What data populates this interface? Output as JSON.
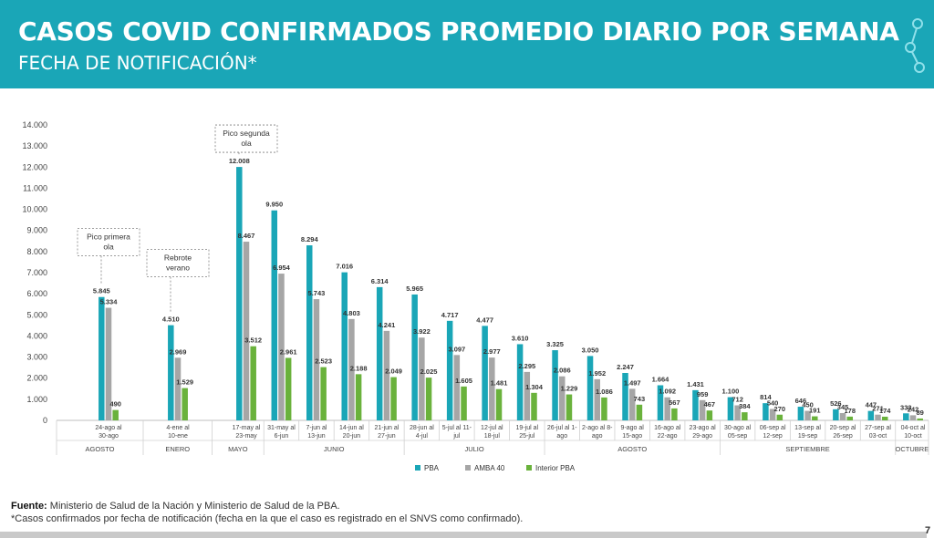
{
  "header": {
    "title": "CASOS COVID CONFIRMADOS PROMEDIO DIARIO POR SEMANA",
    "subtitle": "FECHA DE NOTIFICACIÓN*"
  },
  "footer": {
    "source_label": "Fuente:",
    "source_text": " Ministerio de Salud de la Nación y Ministerio de Salud de la PBA.",
    "note": "*Casos confirmados por fecha de notificación (fecha en la que el caso es registrado en el SNVS como confirmado)."
  },
  "page_number": "7",
  "colors": {
    "banner": "#1aa6b7",
    "PBA": "#1aa6b7",
    "AMBA 40": "#a6a6a6",
    "Interior PBA": "#6ab23c"
  },
  "chart_data": {
    "type": "bar",
    "ylim": [
      0,
      14000
    ],
    "yticks": [
      0,
      1000,
      2000,
      3000,
      4000,
      5000,
      6000,
      7000,
      8000,
      9000,
      10000,
      11000,
      12000,
      13000,
      14000
    ],
    "ytick_labels": [
      "0",
      "1.000",
      "2.000",
      "3.000",
      "4.000",
      "5.000",
      "6.000",
      "7.000",
      "8.000",
      "9.000",
      "10.000",
      "11.000",
      "12.000",
      "13.000",
      "14.000"
    ],
    "grid": false,
    "legend_position": "bottom",
    "categories": [
      "24-ago al 30-ago",
      "4-ene al 10-ene",
      "17-may al 23-may",
      "31-may al 6-jun",
      "7-jun al 13-jun",
      "14-jun al 20-jun",
      "21-jun al 27-jun",
      "28-jun al 4-jul",
      "5-jul al 11-jul",
      "12-jul al 18-jul",
      "19-jul al 25-jul",
      "26-jul al 1-ago",
      "2-ago al 8-ago",
      "9-ago al 15-ago",
      "16-ago al 22-ago",
      "23-ago al 29-ago",
      "30-ago al 05-sep",
      "06-sep al 12-sep",
      "13-sep al 19-sep",
      "20-sep al 26-sep",
      "27-sep al 03-oct",
      "04-oct al 10-oct"
    ],
    "category_lines": [
      [
        "24-ago al",
        "30-ago"
      ],
      [
        "4-ene al",
        "10-ene"
      ],
      [
        "17-may al",
        "23-may"
      ],
      [
        "31-may al",
        "6-jun"
      ],
      [
        "7-jun al",
        "13-jun"
      ],
      [
        "14-jun al",
        "20-jun"
      ],
      [
        "21-jun al",
        "27-jun"
      ],
      [
        "28-jun al",
        "4-jul"
      ],
      [
        "5-jul al 11-",
        "jul"
      ],
      [
        "12-jul al",
        "18-jul"
      ],
      [
        "19-jul al",
        "25-jul"
      ],
      [
        "26-jul al 1-",
        "ago"
      ],
      [
        "2-ago al 8-",
        "ago"
      ],
      [
        "9-ago al",
        "15-ago"
      ],
      [
        "16-ago al",
        "22-ago"
      ],
      [
        "23-ago al",
        "29-ago"
      ],
      [
        "30-ago al",
        "05-sep"
      ],
      [
        "06-sep al",
        "12-sep"
      ],
      [
        "13-sep al",
        "19-sep"
      ],
      [
        "20-sep al",
        "26-sep"
      ],
      [
        "27-sep al",
        "03-oct"
      ],
      [
        "04-oct al",
        "10-oct"
      ]
    ],
    "series": [
      {
        "name": "PBA",
        "values": [
          5845,
          4510,
          12008,
          9950,
          8294,
          7016,
          6314,
          5965,
          4717,
          4477,
          3610,
          3325,
          3050,
          2247,
          1664,
          1431,
          1100,
          814,
          646,
          526,
          447,
          333
        ],
        "labels": [
          "5.845",
          "4.510",
          "12.008",
          "9.950",
          "8.294",
          "7.016",
          "6.314",
          "5.965",
          "4.717",
          "4.477",
          "3.610",
          "3.325",
          "3.050",
          "2.247",
          "1.664",
          "1.431",
          "1.100",
          "814",
          "646",
          "526",
          "447",
          "333"
        ]
      },
      {
        "name": "AMBA 40",
        "values": [
          5334,
          2969,
          8467,
          6954,
          5743,
          4803,
          4241,
          3922,
          3097,
          2977,
          2295,
          2086,
          1952,
          1497,
          1092,
          959,
          712,
          540,
          450,
          345,
          271,
          242
        ],
        "labels": [
          "5.334",
          "2.969",
          "8.467",
          "6.954",
          "5.743",
          "4.803",
          "4.241",
          "3.922",
          "3.097",
          "2.977",
          "2.295",
          "2.086",
          "1.952",
          "1.497",
          "1.092",
          "959",
          "712",
          "540",
          "450",
          "345",
          "271",
          "242"
        ]
      },
      {
        "name": "Interior PBA",
        "values": [
          490,
          1529,
          3512,
          2961,
          2523,
          2188,
          2049,
          2025,
          1605,
          1481,
          1304,
          1229,
          1086,
          743,
          567,
          467,
          384,
          270,
          191,
          178,
          174,
          89
        ],
        "labels": [
          "490",
          "1.529",
          "3.512",
          "2.961",
          "2.523",
          "2.188",
          "2.049",
          "2.025",
          "1.605",
          "1.481",
          "1.304",
          "1.229",
          "1.086",
          "743",
          "567",
          "467",
          "384",
          "270",
          "191",
          "178",
          "174",
          "89"
        ]
      }
    ],
    "month_groups": [
      {
        "label": "AGOSTO",
        "from": 0,
        "to": 0
      },
      {
        "label": "ENERO",
        "from": 1,
        "to": 1
      },
      {
        "label": "MAYO",
        "from": 2,
        "to": 2
      },
      {
        "label": "JUNIO",
        "from": 3,
        "to": 6
      },
      {
        "label": "JULIO",
        "from": 7,
        "to": 10
      },
      {
        "label": "AGOSTO",
        "from": 11,
        "to": 15
      },
      {
        "label": "SEPTIEMBRE",
        "from": 16,
        "to": 20
      },
      {
        "label": "OCTUBRE",
        "from": 21,
        "to": 21
      }
    ],
    "annotations": [
      {
        "lines": [
          "Pico primera",
          "ola"
        ],
        "category": 0,
        "value": 7800
      },
      {
        "lines": [
          "Rebrote",
          "verano"
        ],
        "category": 1,
        "value": 6800
      },
      {
        "lines": [
          "Pico segunda",
          "ola"
        ],
        "category": 2,
        "value": 12700
      }
    ]
  }
}
